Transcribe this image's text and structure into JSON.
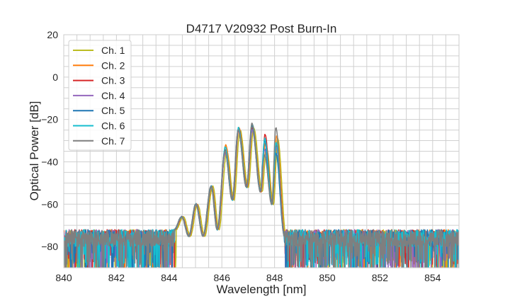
{
  "chart_data": {
    "type": "line",
    "title": "D4717 V20932 Post Burn-In",
    "xlabel": "Wavelength [nm]",
    "ylabel": "Optical Power [dB]",
    "xlim": [
      840,
      855
    ],
    "ylim": [
      -90,
      20
    ],
    "xticks": [
      "840",
      "842",
      "844",
      "846",
      "848",
      "850",
      "852",
      "854"
    ],
    "yticks": [
      "20",
      "0",
      "−20",
      "−40",
      "−60",
      "−80"
    ],
    "xtick_values": [
      840,
      842,
      844,
      846,
      848,
      850,
      852,
      854
    ],
    "ytick_values": [
      20,
      0,
      -20,
      -40,
      -60,
      -80
    ],
    "grid": true,
    "legend_position": "top-left",
    "noise_floor_db": [
      -80,
      -72
    ],
    "signal_band_nm": [
      844.2,
      848.4
    ],
    "shared_points": {
      "wavelengths": [
        844.2,
        844.48,
        844.75,
        845.02,
        845.29,
        845.6,
        845.83,
        846.13,
        846.4,
        846.63,
        846.94,
        847.15,
        847.47,
        847.63,
        847.9,
        848.06,
        848.38
      ],
      "power_db": [
        -72,
        -66,
        -75,
        -60,
        -75,
        -51.5,
        -72,
        null,
        -58,
        null,
        -52,
        null,
        -54,
        null,
        -60,
        null,
        -75
      ]
    },
    "series": [
      {
        "name": "Ch. 1",
        "color": "#bcbd22",
        "shift_nm": 0.06,
        "lobe_peaks_db": [
          -35,
          -25,
          -24,
          -33,
          -29
        ]
      },
      {
        "name": "Ch. 2",
        "color": "#ff7f0e",
        "shift_nm": 0.02,
        "lobe_peaks_db": [
          -32,
          -24,
          -23,
          -31,
          -28
        ]
      },
      {
        "name": "Ch. 3",
        "color": "#d62728",
        "shift_nm": 0.01,
        "lobe_peaks_db": [
          -34,
          -24,
          -24,
          -27,
          -32
        ]
      },
      {
        "name": "Ch. 4",
        "color": "#9467bd",
        "shift_nm": 0.0,
        "lobe_peaks_db": [
          -36,
          -25,
          -25,
          -34,
          -33
        ]
      },
      {
        "name": "Ch. 5",
        "color": "#1f77b4",
        "shift_nm": -0.01,
        "lobe_peaks_db": [
          -35,
          -25,
          -23,
          -30,
          -36
        ]
      },
      {
        "name": "Ch. 6",
        "color": "#17becf",
        "shift_nm": 0.0,
        "lobe_peaks_db": [
          -33,
          -24,
          -22,
          -29,
          -31
        ]
      },
      {
        "name": "Ch. 7",
        "color": "#7f7f7f",
        "shift_nm": -0.01,
        "lobe_peaks_db": [
          -35,
          -25,
          -22,
          -37,
          -24
        ]
      }
    ]
  }
}
